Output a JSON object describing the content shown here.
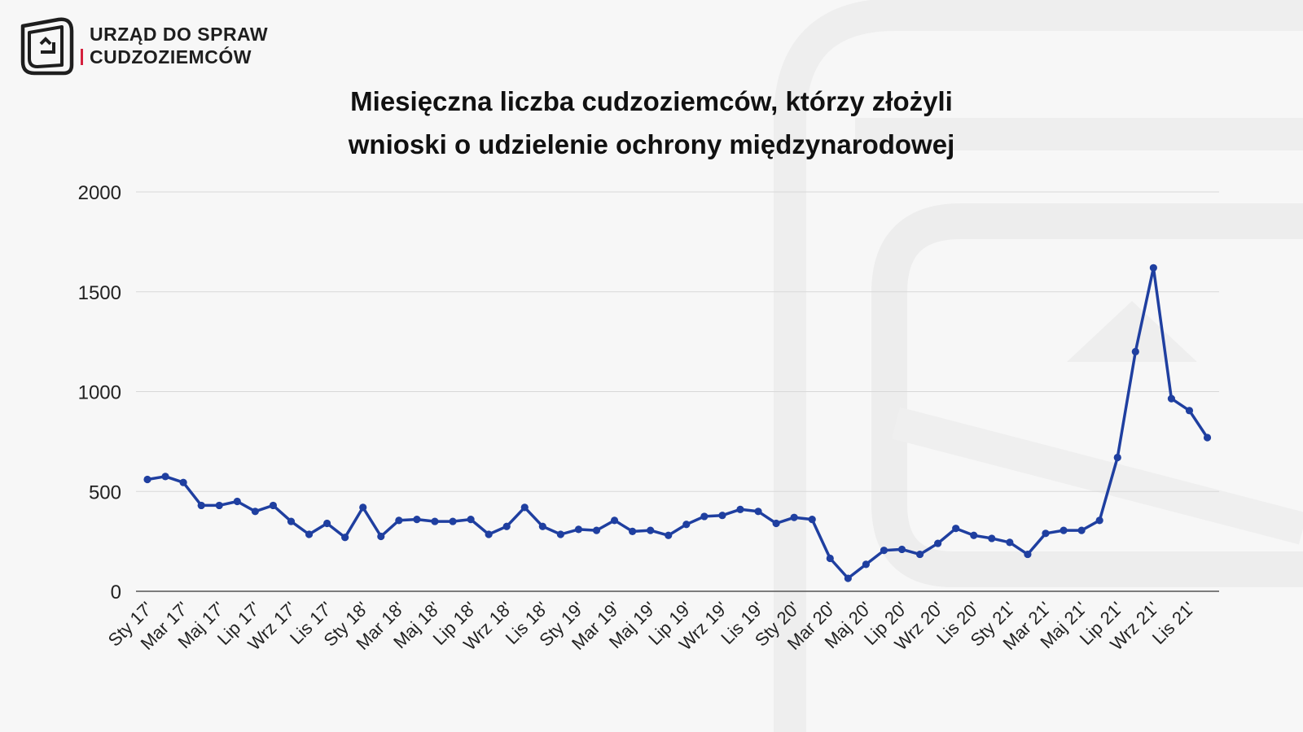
{
  "logo": {
    "line1": "URZĄD DO SPRAW",
    "line2": "CUDZOZIEMCÓW",
    "accent_color": "#d4213d",
    "icon": "office-logo-icon"
  },
  "chart_data": {
    "type": "line",
    "title": "Miesięczna liczba cudzoziemców, którzy złożyli wnioski o udzielenie ochrony międzynarodowej",
    "title_lines": [
      "Miesięczna liczba cudzoziemców, którzy złożyli",
      "wnioski o udzielenie ochrony międzynarodowej"
    ],
    "xlabel": "",
    "ylabel": "",
    "ylim": [
      0,
      2000
    ],
    "yticks": [
      0,
      500,
      1000,
      1500,
      2000
    ],
    "grid": true,
    "line_color": "#1f3fa0",
    "x_tick_labels": [
      "Sty 17'",
      "Mar 17'",
      "Maj 17'",
      "Lip 17'",
      "Wrz 17'",
      "Lis 17'",
      "Sty 18'",
      "Mar 18'",
      "Maj 18'",
      "Lip 18'",
      "Wrz 18'",
      "Lis 18'",
      "Sty 19'",
      "Mar 19'",
      "Maj 19'",
      "Lip 19'",
      "Wrz 19'",
      "Lis 19'",
      "Sty 20'",
      "Mar 20'",
      "Maj 20'",
      "Lip 20'",
      "Wrz 20'",
      "Lis 20'",
      "Sty 21'",
      "Mar 21'",
      "Maj 21'",
      "Lip 21'",
      "Wrz 21'",
      "Lis 21'"
    ],
    "values": [
      560,
      575,
      545,
      430,
      430,
      450,
      400,
      430,
      350,
      285,
      340,
      270,
      420,
      275,
      355,
      360,
      350,
      350,
      360,
      285,
      325,
      420,
      325,
      285,
      310,
      305,
      355,
      300,
      305,
      280,
      335,
      375,
      380,
      410,
      400,
      340,
      370,
      360,
      165,
      65,
      135,
      205,
      210,
      185,
      240,
      315,
      280,
      265,
      245,
      185,
      290,
      305,
      305,
      355,
      670,
      1200,
      1620,
      965,
      905,
      770
    ]
  }
}
